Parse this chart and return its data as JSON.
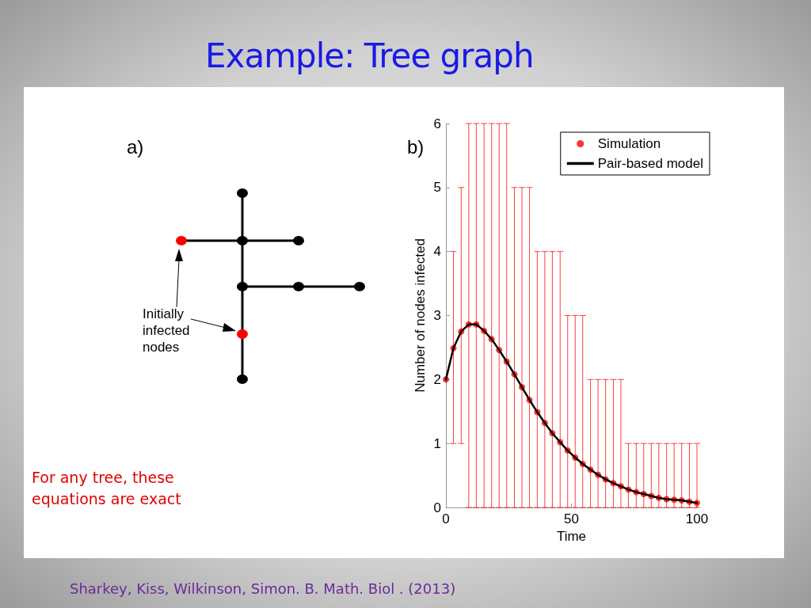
{
  "chart_data": {
    "type": "scatter",
    "title": "Example: Tree graph",
    "xlabel": "Time",
    "ylabel": "Number of nodes infected",
    "annotations": [
      "a)",
      "b)",
      "Initially infected nodes",
      "For any tree, these equations are exact",
      "Sharkey, Kiss, Wilkinson, Simon. B. Math. Biol . (2013)"
    ],
    "x": [
      0,
      3,
      6.1,
      9.1,
      12.1,
      15.2,
      18.2,
      21.2,
      24.2,
      27.3,
      30.3,
      33.3,
      36.4,
      39.4,
      42.4,
      45.5,
      48.5,
      51.5,
      54.5,
      57.6,
      60.6,
      63.6,
      66.7,
      69.7,
      72.7,
      75.8,
      78.8,
      81.8,
      84.8,
      87.9,
      90.9,
      93.9,
      97,
      100
    ],
    "series": [
      {
        "name": "Simulation",
        "color": "#ff0000",
        "marker": "circle",
        "values": [
          2,
          2.49,
          2.75,
          2.86,
          2.86,
          2.76,
          2.63,
          2.46,
          2.28,
          2.08,
          1.88,
          1.68,
          1.49,
          1.32,
          1.16,
          1.02,
          0.89,
          0.78,
          0.68,
          0.59,
          0.51,
          0.44,
          0.38,
          0.33,
          0.28,
          0.24,
          0.21,
          0.18,
          0.15,
          0.13,
          0.12,
          0.11,
          0.09,
          0.07
        ],
        "errors": [
          null,
          [
            1,
            4
          ],
          [
            1,
            5
          ],
          [
            0,
            6
          ],
          [
            0,
            6
          ],
          [
            0,
            6
          ],
          [
            0,
            6
          ],
          [
            0,
            6
          ],
          [
            0,
            6
          ],
          [
            0,
            5
          ],
          [
            0,
            5
          ],
          [
            0,
            5
          ],
          [
            0,
            4
          ],
          [
            0,
            4
          ],
          [
            0,
            4
          ],
          [
            0,
            4
          ],
          [
            0,
            3
          ],
          [
            0,
            3
          ],
          [
            0,
            3
          ],
          [
            0,
            2
          ],
          [
            0,
            2
          ],
          [
            0,
            2
          ],
          [
            0,
            2
          ],
          [
            0,
            2
          ],
          [
            0,
            1
          ],
          [
            0,
            1
          ],
          [
            0,
            1
          ],
          [
            0,
            1
          ],
          [
            0,
            1
          ],
          [
            0,
            1
          ],
          [
            0,
            1
          ],
          [
            0,
            1
          ],
          [
            0,
            1
          ],
          [
            0,
            1
          ]
        ]
      },
      {
        "name": "Pair-based model",
        "type": "line",
        "color": "#000000",
        "marker": "none",
        "values": [
          2,
          2.49,
          2.75,
          2.86,
          2.86,
          2.76,
          2.63,
          2.46,
          2.28,
          2.08,
          1.88,
          1.68,
          1.49,
          1.32,
          1.16,
          1.02,
          0.89,
          0.78,
          0.68,
          0.59,
          0.51,
          0.44,
          0.38,
          0.33,
          0.28,
          0.24,
          0.21,
          0.18,
          0.15,
          0.13,
          0.12,
          0.11,
          0.09,
          0.07
        ]
      }
    ],
    "xlim": [
      0,
      100
    ],
    "xticks": [
      0,
      50,
      100
    ],
    "ylim": [
      0,
      6
    ],
    "yticks": [
      0,
      1,
      2,
      3,
      4,
      5,
      6
    ],
    "grid": false,
    "legend": "top right",
    "line_style": "solid"
  }
}
